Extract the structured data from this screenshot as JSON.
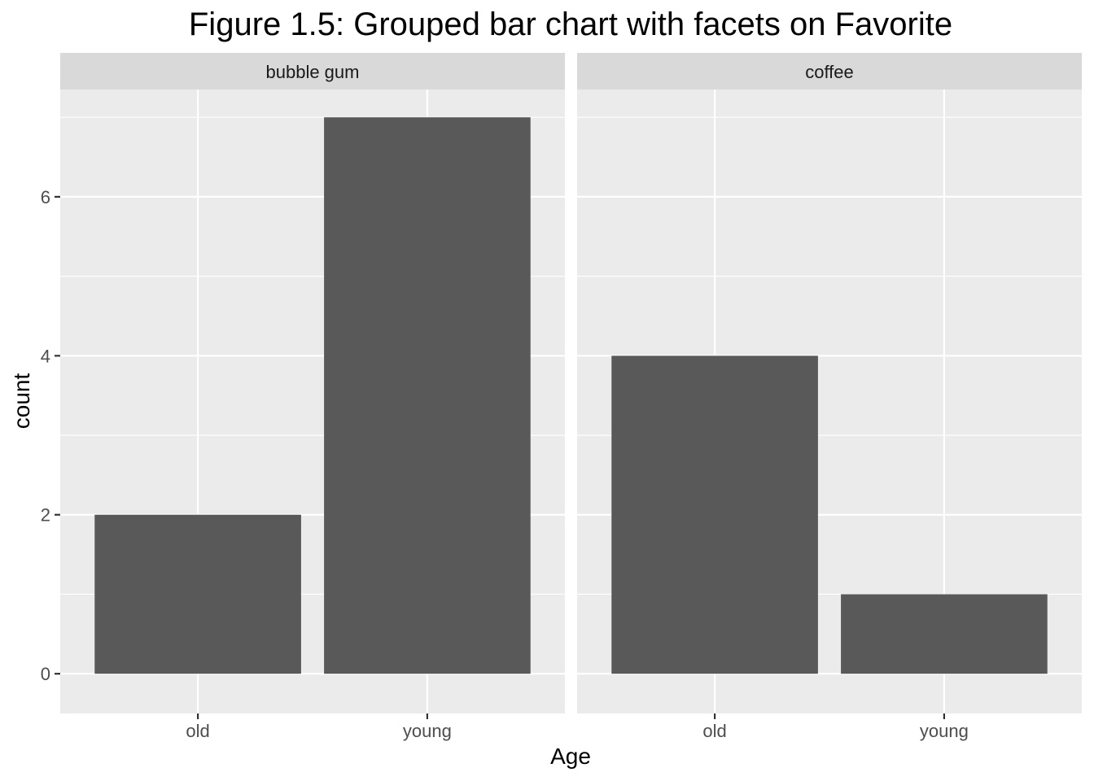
{
  "chart_data": {
    "type": "bar",
    "title": "Figure 1.5: Grouped bar chart with facets on Favorite",
    "xlabel": "Age",
    "ylabel": "count",
    "ylim": [
      -0.5,
      7.35
    ],
    "yticks": [
      0,
      2,
      4,
      6
    ],
    "grid": true,
    "facets": [
      {
        "label": "bubble gum",
        "categories": [
          "old",
          "young"
        ],
        "values": [
          2,
          7
        ]
      },
      {
        "label": "coffee",
        "categories": [
          "old",
          "young"
        ],
        "values": [
          4,
          1
        ]
      }
    ],
    "colors": {
      "panel_background": "#ebebeb",
      "strip_background": "#d9d9d9",
      "grid": "#ffffff",
      "bar_fill": "#595959",
      "tick_mark": "#333333"
    }
  }
}
